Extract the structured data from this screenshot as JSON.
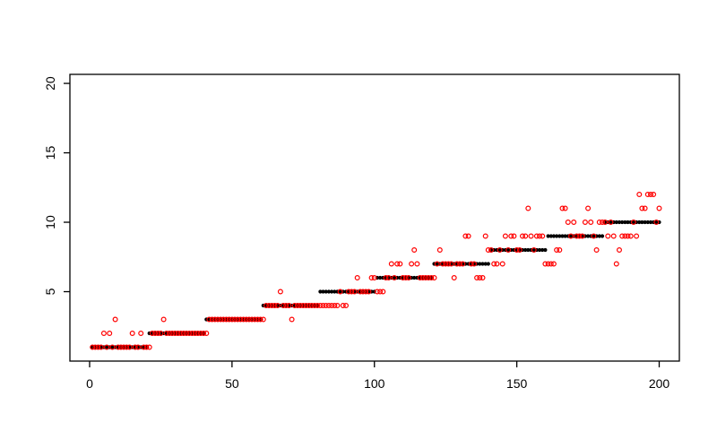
{
  "window": {
    "background": "#ffffff"
  },
  "chart_data": {
    "type": "scatter",
    "title": "",
    "xlabel": "",
    "ylabel": "",
    "grid": false,
    "legend": null,
    "frame_box": true,
    "axis_color": "#000000",
    "xlim": [
      -6.92,
      207.08
    ],
    "ylim": [
      0,
      20.65
    ],
    "x_tick_values": [
      0,
      50,
      100,
      150,
      200
    ],
    "x_tick_labels": [
      "0",
      "50",
      "100",
      "150",
      "200"
    ],
    "y_tick_values": [
      5,
      10,
      15,
      20
    ],
    "y_tick_labels": [
      "5",
      "10",
      "15",
      "20"
    ],
    "series": [
      {
        "name": "step-black",
        "marker": "filled-circle",
        "color": "#000000",
        "runs": [
          {
            "y": 1,
            "x_from": 1,
            "x_to": 20
          },
          {
            "y": 2,
            "x_from": 21,
            "x_to": 40
          },
          {
            "y": 3,
            "x_from": 41,
            "x_to": 60
          },
          {
            "y": 4,
            "x_from": 61,
            "x_to": 80
          },
          {
            "y": 5,
            "x_from": 81,
            "x_to": 100
          },
          {
            "y": 6,
            "x_from": 101,
            "x_to": 120
          },
          {
            "y": 7,
            "x_from": 121,
            "x_to": 140
          },
          {
            "y": 8,
            "x_from": 141,
            "x_to": 160
          },
          {
            "y": 9,
            "x_from": 161,
            "x_to": 180
          },
          {
            "y": 10,
            "x_from": 181,
            "x_to": 200
          }
        ]
      },
      {
        "name": "samples-red",
        "marker": "open-circle",
        "color": "#FF0000",
        "x_from": 1,
        "y_values": [
          1,
          1,
          1,
          1,
          2,
          1,
          2,
          1,
          3,
          1,
          1,
          1,
          1,
          1,
          2,
          1,
          1,
          2,
          1,
          1,
          1,
          2,
          2,
          2,
          2,
          3,
          2,
          2,
          2,
          2,
          2,
          2,
          2,
          2,
          2,
          2,
          2,
          2,
          2,
          2,
          2,
          3,
          3,
          3,
          3,
          3,
          3,
          3,
          3,
          3,
          3,
          3,
          3,
          3,
          3,
          3,
          3,
          3,
          3,
          3,
          3,
          4,
          4,
          4,
          4,
          4,
          5,
          4,
          4,
          4,
          3,
          4,
          4,
          4,
          4,
          4,
          4,
          4,
          4,
          4,
          4,
          4,
          4,
          4,
          4,
          4,
          4,
          5,
          4,
          4,
          5,
          5,
          5,
          6,
          5,
          5,
          5,
          5,
          6,
          6,
          5,
          5,
          5,
          6,
          6,
          7,
          6,
          7,
          7,
          6,
          6,
          6,
          7,
          8,
          7,
          6,
          6,
          6,
          6,
          6,
          6,
          7,
          8,
          7,
          7,
          7,
          7,
          6,
          7,
          7,
          7,
          9,
          9,
          7,
          7,
          6,
          6,
          6,
          9,
          8,
          8,
          7,
          7,
          8,
          7,
          9,
          8,
          9,
          9,
          8,
          8,
          9,
          9,
          11,
          9,
          8,
          9,
          9,
          9,
          7,
          7,
          7,
          7,
          8,
          8,
          11,
          11,
          10,
          9,
          10,
          9,
          9,
          9,
          10,
          11,
          10,
          9,
          8,
          10,
          10,
          10,
          9,
          10,
          9,
          7,
          8,
          9,
          9,
          9,
          9,
          10,
          9,
          12,
          11,
          11,
          12,
          12,
          12,
          10,
          11
        ]
      }
    ]
  }
}
